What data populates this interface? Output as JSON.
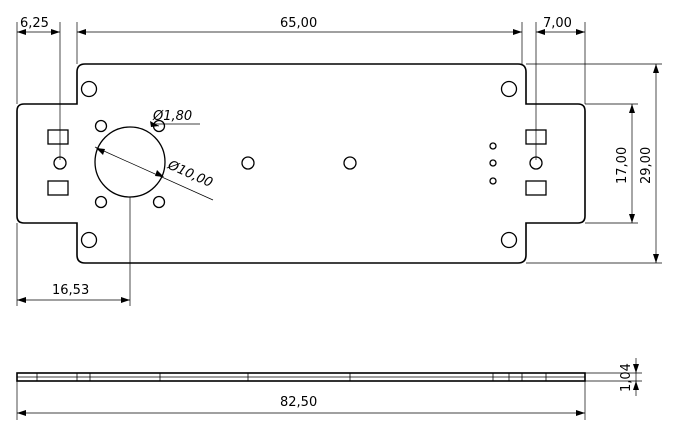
{
  "drawing": {
    "dimensions": {
      "left_margin": "6,25",
      "center_span": "65,00",
      "right_margin": "7,00",
      "small_hole_diameter": "Ø1,80",
      "large_hole_diameter": "Ø10,00",
      "inner_height": "17,00",
      "total_height": "29,00",
      "center_offset": "16,53",
      "thickness": "1,04",
      "total_length": "82,50"
    }
  }
}
